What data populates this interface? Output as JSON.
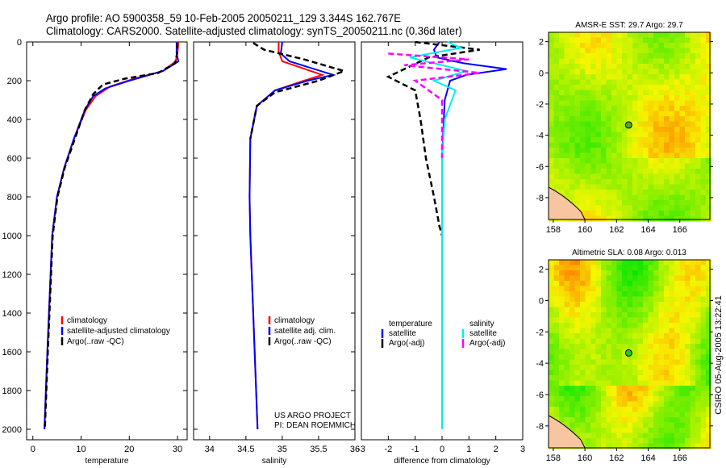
{
  "header": {
    "line1": "Argo profile: AO 5900358_59 10-Feb-2005 20050211_129 3.344S 162.767E",
    "line2": "Climatology: CARS2000. Satellite-adjusted climatology: synTS_20050211.nc (0.36d later)"
  },
  "credit": "CSIRO 05-Aug-2005 13:22:41",
  "project": {
    "line1": "US ARGO PROJECT",
    "line2": "PI: DEAN ROEMMICH"
  },
  "chart_data": [
    {
      "type": "line",
      "xlabel": "temperature",
      "ylabel": "",
      "xlim": [
        -1.3,
        32
      ],
      "ylim": [
        2000,
        0
      ],
      "xticks": [
        0,
        10,
        20,
        30
      ],
      "yticks": [
        0,
        200,
        400,
        600,
        800,
        1000,
        1200,
        1400,
        1600,
        1800,
        2000
      ],
      "series": [
        {
          "name": "climatology",
          "color": "#ff0000",
          "dash": false,
          "x": [
            30.2,
            30.0,
            29.6,
            27,
            21,
            16,
            13,
            11,
            8.5,
            6.5,
            5,
            4,
            3.5,
            3,
            2.4
          ],
          "y": [
            0,
            60,
            100,
            150,
            190,
            230,
            280,
            350,
            500,
            650,
            800,
            1000,
            1300,
            1600,
            2000
          ]
        },
        {
          "name": "satellite-adjusted climatology",
          "color": "#0000ff",
          "dash": false,
          "x": [
            29.8,
            29.8,
            30.2,
            27,
            20,
            15,
            12.5,
            10.8,
            8.5,
            6.5,
            5,
            4,
            3.5,
            3,
            2.4
          ],
          "y": [
            0,
            60,
            100,
            150,
            200,
            240,
            280,
            350,
            500,
            650,
            800,
            1000,
            1300,
            1600,
            2000
          ]
        },
        {
          "name": "Argo(..raw -QC)",
          "color": "#000000",
          "dash": true,
          "x": [
            29.9,
            29.9,
            29.5,
            26,
            19,
            14.5,
            12.5,
            10.8,
            8.7,
            6.6,
            5.1,
            4.1,
            3.6,
            3.1,
            2.5
          ],
          "y": [
            5,
            60,
            110,
            160,
            190,
            220,
            270,
            350,
            500,
            650,
            800,
            1000,
            1300,
            1600,
            1990
          ]
        }
      ]
    },
    {
      "type": "line",
      "xlabel": "salinity",
      "ylabel": "",
      "xlim": [
        33.78,
        36
      ],
      "ylim": [
        2000,
        0
      ],
      "xticks": [
        34,
        34.5,
        35,
        35.5,
        36
      ],
      "yticks": [
        0,
        200,
        400,
        600,
        800,
        1000,
        1200,
        1400,
        1600,
        1800,
        2000
      ],
      "series": [
        {
          "name": "climatology",
          "color": "#ff0000",
          "dash": false,
          "x": [
            34.95,
            34.95,
            35.0,
            35.55,
            35.3,
            34.9,
            34.65,
            34.56,
            34.55,
            34.56,
            34.58,
            34.6,
            34.62,
            34.66
          ],
          "y": [
            0,
            50,
            100,
            170,
            200,
            250,
            330,
            500,
            800,
            1000,
            1200,
            1400,
            1600,
            2000
          ]
        },
        {
          "name": "satellite adj. clim.",
          "color": "#0000ff",
          "dash": false,
          "x": [
            35.0,
            34.98,
            35.1,
            35.7,
            35.35,
            34.9,
            34.65,
            34.56,
            34.55,
            34.56,
            34.58,
            34.6,
            34.62,
            34.66
          ],
          "y": [
            0,
            60,
            100,
            170,
            200,
            250,
            330,
            500,
            800,
            1000,
            1200,
            1400,
            1600,
            2000
          ]
        },
        {
          "name": "Argo(..raw -QC)",
          "color": "#000000",
          "dash": true,
          "x": [
            34.6,
            34.75,
            35.3,
            35.85,
            35.5,
            34.9,
            34.65,
            34.56
          ],
          "y": [
            5,
            40,
            90,
            150,
            200,
            260,
            330,
            500
          ]
        }
      ]
    },
    {
      "type": "line",
      "xlabel": "difference from climatology",
      "ylabel": "",
      "xlim": [
        -3,
        3
      ],
      "ylim": [
        2000,
        0
      ],
      "xticks": [
        -3,
        -2,
        -1,
        0,
        1,
        2,
        3
      ],
      "yticks": [],
      "legend": {
        "temperature_title": "temperature",
        "salinity_title": "salinity"
      },
      "series": [
        {
          "name": "satellite",
          "group": "temperature",
          "color": "#0000ff",
          "dash": false,
          "x": [
            -0.1,
            -0.3,
            -0.2,
            0.8,
            2.4,
            0.9,
            0.3,
            0.1,
            0,
            0
          ],
          "y": [
            0,
            40,
            80,
            110,
            140,
            170,
            200,
            300,
            600,
            2000
          ]
        },
        {
          "name": "Argo(-adj)",
          "group": "temperature",
          "color": "#000000",
          "dash": true,
          "x": [
            -1.0,
            1.4,
            -0.5,
            -2.0,
            -1.0,
            -0.8,
            -0.6,
            -0.3,
            -0.1,
            0
          ],
          "y": [
            0,
            40,
            80,
            180,
            250,
            400,
            600,
            800,
            950,
            1000
          ]
        },
        {
          "name": "satellite",
          "group": "salinity",
          "color": "#00eeee",
          "dash": false,
          "x": [
            0.2,
            0.7,
            -1.2,
            0.9,
            -0.3,
            0.5,
            0.1,
            0,
            0
          ],
          "y": [
            0,
            30,
            80,
            150,
            200,
            250,
            400,
            600,
            2000
          ]
        },
        {
          "name": "Argo(-adj)",
          "group": "salinity",
          "color": "#ff00ff",
          "dash": true,
          "x": [
            -2.0,
            1.0,
            -1.4,
            1.4,
            -1.0,
            0,
            0
          ],
          "y": [
            60,
            90,
            120,
            160,
            200,
            300,
            600
          ]
        }
      ]
    }
  ],
  "maps": [
    {
      "title": "AMSR-E SST: 29.7 Argo: 29.7",
      "xticks": [
        "158",
        "160",
        "162",
        "164",
        "166"
      ],
      "yticks": [
        "2",
        "0",
        "-2",
        "-4",
        "-6",
        "-8"
      ]
    },
    {
      "title": "Altimetric SLA: 0.08 Argo: 0.013",
      "xticks": [
        "158",
        "160",
        "162",
        "164",
        "166"
      ],
      "yticks": [
        "2",
        "0",
        "-2",
        "-4",
        "-6",
        "-8"
      ]
    }
  ]
}
